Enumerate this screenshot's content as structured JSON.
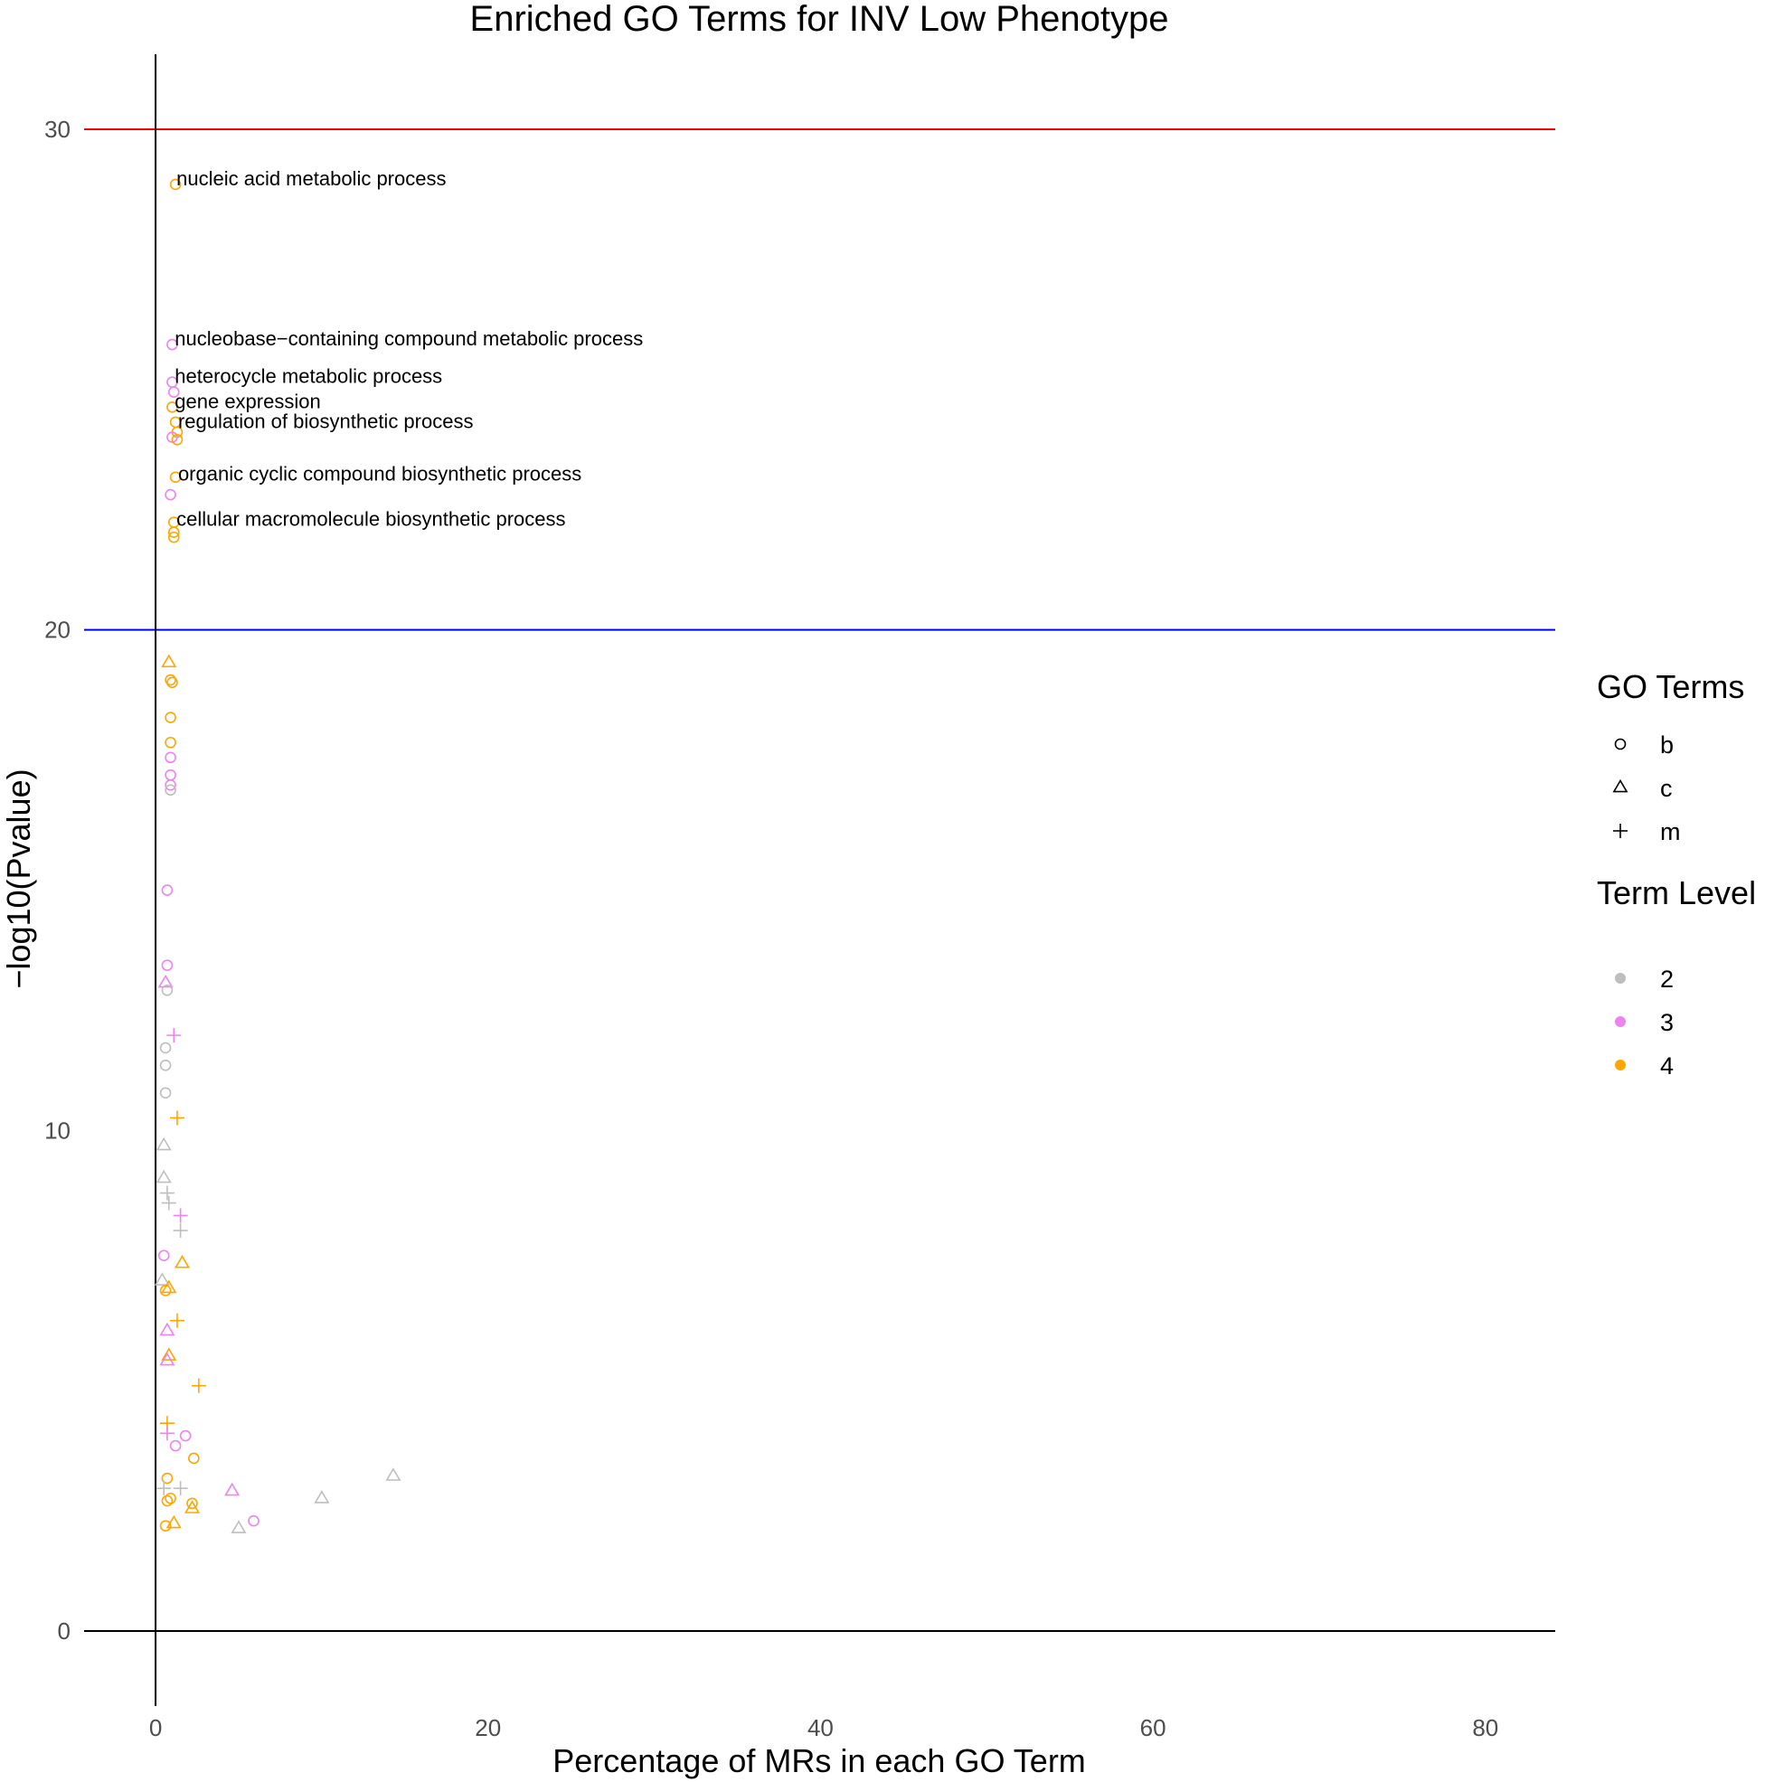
{
  "chart_data": {
    "type": "scatter",
    "title": "Enriched GO Terms for INV Low Phenotype",
    "xlabel": "Percentage of MRs in each GO Term",
    "ylabel": "−log10(Pvalue)",
    "xlim": [
      -4.3,
      84.2
    ],
    "ylim": [
      -1.5,
      31.5
    ],
    "x_ticks": [
      "0",
      "20",
      "40",
      "60",
      "80"
    ],
    "y_ticks": [
      "0",
      "10",
      "20",
      "30"
    ],
    "grid": false,
    "reference_lines": [
      {
        "axis": "y",
        "value": 30,
        "color": "#ff0000"
      },
      {
        "axis": "y",
        "value": 20,
        "color": "#0000ff"
      },
      {
        "axis": "y",
        "value": 0,
        "color": "#000000"
      },
      {
        "axis": "x",
        "value": 0,
        "color": "#000000"
      }
    ],
    "level_colors": {
      "2": "#bebebe",
      "3": "#ee82ee",
      "4": "#ffa500"
    },
    "legend": {
      "position": "right",
      "shape_title": "GO Terms",
      "shape_items": [
        {
          "label": "b",
          "shape": "circle"
        },
        {
          "label": "c",
          "shape": "triangle"
        },
        {
          "label": "m",
          "shape": "plus"
        }
      ],
      "color_title": "Term Level",
      "color_items": [
        {
          "label": "2",
          "level": "2"
        },
        {
          "label": "3",
          "level": "3"
        },
        {
          "label": "4",
          "level": "4"
        }
      ]
    },
    "annotations": [
      {
        "text": "nucleic acid metabolic process",
        "x": 1.2,
        "y": 28.9
      },
      {
        "text": "nucleobase−containing compound metabolic process",
        "x": 1.1,
        "y": 25.7
      },
      {
        "text": "heterocycle metabolic process",
        "x": 1.1,
        "y": 24.95
      },
      {
        "text": "gene expression",
        "x": 1.1,
        "y": 24.45
      },
      {
        "text": "regulation of biosynthetic process",
        "x": 1.3,
        "y": 24.05
      },
      {
        "text": "organic cyclic compound biosynthetic process",
        "x": 1.3,
        "y": 23.0
      },
      {
        "text": "cellular macromolecule biosynthetic process",
        "x": 1.2,
        "y": 22.1
      }
    ],
    "points": [
      {
        "x": 1.2,
        "y": 28.9,
        "shape": "b",
        "level": "4"
      },
      {
        "x": 1.0,
        "y": 25.7,
        "shape": "b",
        "level": "3"
      },
      {
        "x": 1.0,
        "y": 24.95,
        "shape": "b",
        "level": "3"
      },
      {
        "x": 1.1,
        "y": 24.75,
        "shape": "b",
        "level": "3"
      },
      {
        "x": 1.0,
        "y": 24.45,
        "shape": "b",
        "level": "4"
      },
      {
        "x": 1.2,
        "y": 24.15,
        "shape": "b",
        "level": "4"
      },
      {
        "x": 1.3,
        "y": 23.95,
        "shape": "b",
        "level": "4"
      },
      {
        "x": 1.0,
        "y": 23.85,
        "shape": "b",
        "level": "3"
      },
      {
        "x": 1.3,
        "y": 23.8,
        "shape": "b",
        "level": "4"
      },
      {
        "x": 1.2,
        "y": 23.05,
        "shape": "b",
        "level": "4"
      },
      {
        "x": 0.9,
        "y": 22.7,
        "shape": "b",
        "level": "3"
      },
      {
        "x": 1.1,
        "y": 22.15,
        "shape": "b",
        "level": "4"
      },
      {
        "x": 1.1,
        "y": 21.95,
        "shape": "b",
        "level": "4"
      },
      {
        "x": 1.1,
        "y": 21.85,
        "shape": "b",
        "level": "4"
      },
      {
        "x": 0.8,
        "y": 19.35,
        "shape": "c",
        "level": "4"
      },
      {
        "x": 0.9,
        "y": 19.0,
        "shape": "b",
        "level": "4"
      },
      {
        "x": 1.0,
        "y": 18.95,
        "shape": "b",
        "level": "4"
      },
      {
        "x": 0.9,
        "y": 18.25,
        "shape": "b",
        "level": "4"
      },
      {
        "x": 0.9,
        "y": 17.75,
        "shape": "b",
        "level": "4"
      },
      {
        "x": 0.9,
        "y": 17.45,
        "shape": "b",
        "level": "3"
      },
      {
        "x": 0.9,
        "y": 17.1,
        "shape": "b",
        "level": "3"
      },
      {
        "x": 0.9,
        "y": 16.9,
        "shape": "b",
        "level": "3"
      },
      {
        "x": 0.9,
        "y": 16.8,
        "shape": "b",
        "level": "2"
      },
      {
        "x": 0.7,
        "y": 14.8,
        "shape": "b",
        "level": "3"
      },
      {
        "x": 0.7,
        "y": 13.3,
        "shape": "b",
        "level": "3"
      },
      {
        "x": 0.6,
        "y": 12.95,
        "shape": "c",
        "level": "3"
      },
      {
        "x": 0.7,
        "y": 12.8,
        "shape": "b",
        "level": "2"
      },
      {
        "x": 1.1,
        "y": 11.9,
        "shape": "m",
        "level": "3"
      },
      {
        "x": 0.6,
        "y": 11.65,
        "shape": "b",
        "level": "2"
      },
      {
        "x": 0.6,
        "y": 11.3,
        "shape": "b",
        "level": "2"
      },
      {
        "x": 0.6,
        "y": 10.75,
        "shape": "b",
        "level": "2"
      },
      {
        "x": 1.3,
        "y": 10.25,
        "shape": "m",
        "level": "4"
      },
      {
        "x": 0.5,
        "y": 9.7,
        "shape": "c",
        "level": "2"
      },
      {
        "x": 0.5,
        "y": 9.05,
        "shape": "c",
        "level": "2"
      },
      {
        "x": 0.7,
        "y": 8.75,
        "shape": "m",
        "level": "2"
      },
      {
        "x": 0.8,
        "y": 8.55,
        "shape": "m",
        "level": "2"
      },
      {
        "x": 1.5,
        "y": 8.3,
        "shape": "m",
        "level": "3"
      },
      {
        "x": 1.5,
        "y": 8.0,
        "shape": "m",
        "level": "2"
      },
      {
        "x": 1.6,
        "y": 7.35,
        "shape": "c",
        "level": "4"
      },
      {
        "x": 0.5,
        "y": 7.5,
        "shape": "b",
        "level": "3"
      },
      {
        "x": 0.4,
        "y": 7.0,
        "shape": "c",
        "level": "2"
      },
      {
        "x": 0.8,
        "y": 6.85,
        "shape": "c",
        "level": "4"
      },
      {
        "x": 0.6,
        "y": 6.8,
        "shape": "b",
        "level": "4"
      },
      {
        "x": 1.3,
        "y": 6.2,
        "shape": "m",
        "level": "4"
      },
      {
        "x": 0.7,
        "y": 6.0,
        "shape": "c",
        "level": "3"
      },
      {
        "x": 0.8,
        "y": 5.5,
        "shape": "c",
        "level": "4"
      },
      {
        "x": 0.7,
        "y": 5.4,
        "shape": "c",
        "level": "3"
      },
      {
        "x": 2.6,
        "y": 4.9,
        "shape": "m",
        "level": "4"
      },
      {
        "x": 0.7,
        "y": 4.15,
        "shape": "m",
        "level": "4"
      },
      {
        "x": 0.7,
        "y": 3.95,
        "shape": "m",
        "level": "3"
      },
      {
        "x": 1.8,
        "y": 3.9,
        "shape": "b",
        "level": "3"
      },
      {
        "x": 1.2,
        "y": 3.7,
        "shape": "b",
        "level": "3"
      },
      {
        "x": 2.3,
        "y": 3.45,
        "shape": "b",
        "level": "4"
      },
      {
        "x": 14.3,
        "y": 3.1,
        "shape": "c",
        "level": "2"
      },
      {
        "x": 0.7,
        "y": 3.05,
        "shape": "b",
        "level": "4"
      },
      {
        "x": 0.5,
        "y": 2.85,
        "shape": "m",
        "level": "2"
      },
      {
        "x": 1.5,
        "y": 2.85,
        "shape": "m",
        "level": "2"
      },
      {
        "x": 4.6,
        "y": 2.8,
        "shape": "c",
        "level": "3"
      },
      {
        "x": 10.0,
        "y": 2.65,
        "shape": "c",
        "level": "2"
      },
      {
        "x": 0.9,
        "y": 2.65,
        "shape": "b",
        "level": "4"
      },
      {
        "x": 0.7,
        "y": 2.6,
        "shape": "b",
        "level": "4"
      },
      {
        "x": 2.2,
        "y": 2.55,
        "shape": "b",
        "level": "4"
      },
      {
        "x": 2.2,
        "y": 2.45,
        "shape": "c",
        "level": "4"
      },
      {
        "x": 1.1,
        "y": 2.15,
        "shape": "c",
        "level": "4"
      },
      {
        "x": 5.9,
        "y": 2.2,
        "shape": "b",
        "level": "3"
      },
      {
        "x": 5.0,
        "y": 2.05,
        "shape": "c",
        "level": "2"
      },
      {
        "x": 0.6,
        "y": 2.1,
        "shape": "b",
        "level": "4"
      }
    ]
  }
}
